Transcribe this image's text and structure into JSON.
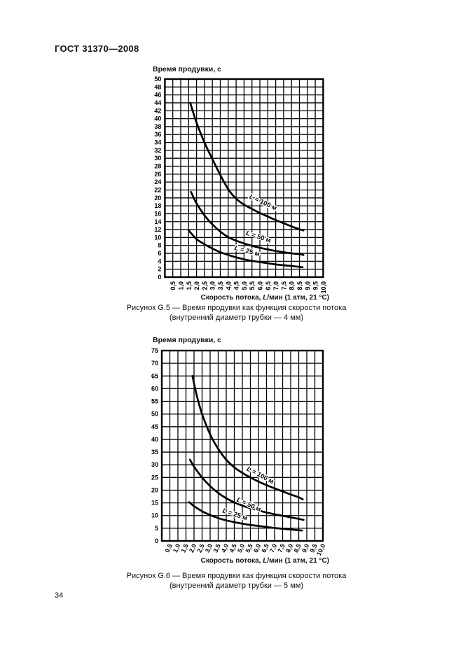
{
  "page": {
    "header": "ГОСТ 31370—2008",
    "page_number": "34"
  },
  "axis_label": {
    "prefix": "Скорость потока, ",
    "italic": "L",
    "suffix": "/мин (1 атм, 21 °C)"
  },
  "chart_data": [
    {
      "type": "line",
      "title": "",
      "ylabel": "Время продувки, с",
      "xlabel": "Скорость потока, L/мин (1 атм, 21 °C)",
      "xlim": [
        0,
        10
      ],
      "ylim": [
        0,
        50
      ],
      "grid": true,
      "legend_position": "labels-on-curves",
      "x_tick_rotation": -90,
      "x_ticks": [
        "0,5",
        "1,0",
        "1,5",
        "2,0",
        "2,5",
        "3,0",
        "3,5",
        "4,0",
        "4,5",
        "5,0",
        "5,5",
        "6,0",
        "6,5",
        "7,0",
        "7,5",
        "8,0",
        "8,5",
        "9,0",
        "9,5",
        "10,0"
      ],
      "y_ticks": [
        "0",
        "2",
        "4",
        "6",
        "8",
        "10",
        "12",
        "14",
        "16",
        "18",
        "20",
        "22",
        "24",
        "26",
        "28",
        "30",
        "32",
        "34",
        "36",
        "38",
        "40",
        "42",
        "44",
        "46",
        "48",
        "50"
      ],
      "series": [
        {
          "name": "L = 100 м",
          "label_x": 6.15,
          "label_y": 18.4,
          "label_angle": 25,
          "points": [
            [
              1.6,
              44
            ],
            [
              2,
              39
            ],
            [
              2.5,
              34
            ],
            [
              3,
              29.8
            ],
            [
              3.5,
              25.8
            ],
            [
              4,
              22.2
            ],
            [
              4.5,
              19.8
            ],
            [
              5,
              18.3
            ],
            [
              5.5,
              17.2
            ],
            [
              6,
              16.2
            ],
            [
              6.5,
              15.3
            ],
            [
              7,
              14.4
            ],
            [
              7.5,
              13.6
            ],
            [
              8,
              12.8
            ],
            [
              8.5,
              12.1
            ],
            [
              8.75,
              11.8
            ]
          ]
        },
        {
          "name": "L = 50 м",
          "label_x": 5.87,
          "label_y": 9.7,
          "label_angle": 18,
          "points": [
            [
              1.65,
              21.5
            ],
            [
              2,
              18.6
            ],
            [
              2.5,
              15.6
            ],
            [
              3,
              13.3
            ],
            [
              3.5,
              11.5
            ],
            [
              4,
              10.1
            ],
            [
              4.5,
              9.2
            ],
            [
              5,
              8.5
            ],
            [
              5.5,
              7.9
            ],
            [
              6,
              7.4
            ],
            [
              6.5,
              7.0
            ],
            [
              7,
              6.6
            ],
            [
              7.5,
              6.3
            ],
            [
              8,
              6.0
            ],
            [
              8.5,
              5.8
            ],
            [
              8.75,
              5.6
            ]
          ]
        },
        {
          "name": "L = 25 м",
          "label_x": 5.16,
          "label_y": 6.1,
          "label_angle": 15,
          "points": [
            [
              1.5,
              11.8
            ],
            [
              2,
              9.6
            ],
            [
              2.5,
              8.3
            ],
            [
              3,
              7.2
            ],
            [
              3.5,
              6.3
            ],
            [
              4,
              5.6
            ],
            [
              4.5,
              5.0
            ],
            [
              5,
              4.5
            ],
            [
              5.5,
              4.1
            ],
            [
              6,
              3.8
            ],
            [
              6.5,
              3.5
            ],
            [
              7,
              3.2
            ],
            [
              7.5,
              3.0
            ],
            [
              8,
              2.8
            ],
            [
              8.5,
              2.6
            ],
            [
              8.7,
              2.5
            ]
          ]
        }
      ],
      "caption_line1": "Рисунок G.5 — Время продувки как функция скорости потока",
      "caption_line2": "(внутренний диаметр трубки — 4 мм)"
    },
    {
      "type": "line",
      "title": "",
      "ylabel": "Время продувки, с",
      "xlabel": "Скорость потока, L/мин (1 атм, 21 °C)",
      "xlim": [
        0,
        10
      ],
      "ylim": [
        0,
        75
      ],
      "grid": true,
      "legend_position": "labels-on-curves",
      "x_tick_rotation": -65,
      "x_ticks": [
        "0,5",
        "1,0",
        "1,5",
        "2,0",
        "2,5",
        "3,0",
        "3,5",
        "4,0",
        "4,5",
        "5,0",
        "5,5",
        "6,0",
        "6,5",
        "7,0",
        "7,5",
        "8,0",
        "8,5",
        "9,0",
        "9,5",
        "10,0"
      ],
      "y_ticks": [
        "0",
        "5",
        "10",
        "15",
        "20",
        "25",
        "30",
        "35",
        "40",
        "45",
        "50",
        "55",
        "60",
        "65",
        "70",
        "75"
      ],
      "series": [
        {
          "name": "L = 100 м",
          "label_x": 6.05,
          "label_y": 25.2,
          "label_angle": 28,
          "points": [
            [
              1.9,
              65
            ],
            [
              2.2,
              56.5
            ],
            [
              2.5,
              50
            ],
            [
              3,
              42
            ],
            [
              3.5,
              36.3
            ],
            [
              4,
              32
            ],
            [
              4.5,
              29
            ],
            [
              5,
              26.8
            ],
            [
              5.5,
              25
            ],
            [
              6,
              23.4
            ],
            [
              6.5,
              22
            ],
            [
              7,
              20.7
            ],
            [
              7.5,
              19.5
            ],
            [
              8,
              18.3
            ],
            [
              8.5,
              17.2
            ],
            [
              8.75,
              16.4
            ]
          ]
        },
        {
          "name": "L = 50 м",
          "label_x": 5.35,
          "label_y": 13.6,
          "label_angle": 24,
          "points": [
            [
              1.75,
              32
            ],
            [
              2,
              29.3
            ],
            [
              2.5,
              25
            ],
            [
              3,
              21.6
            ],
            [
              3.5,
              18.9
            ],
            [
              4,
              16.8
            ],
            [
              4.5,
              15.2
            ],
            [
              5,
              13.9
            ],
            [
              5.5,
              12.9
            ],
            [
              6,
              12.0
            ],
            [
              6.5,
              11.2
            ],
            [
              7,
              10.5
            ],
            [
              7.5,
              9.9
            ],
            [
              8,
              9.3
            ],
            [
              8.5,
              8.7
            ],
            [
              8.8,
              8.3
            ]
          ]
        },
        {
          "name": "L = 25 м",
          "label_x": 4.5,
          "label_y": 9.7,
          "label_angle": 18,
          "points": [
            [
              1.7,
              15.3
            ],
            [
              2,
              13.7
            ],
            [
              2.5,
              11.7
            ],
            [
              3,
              10.2
            ],
            [
              3.5,
              9.0
            ],
            [
              4,
              8.1
            ],
            [
              4.5,
              7.4
            ],
            [
              5,
              6.8
            ],
            [
              5.5,
              6.3
            ],
            [
              6,
              5.9
            ],
            [
              6.5,
              5.5
            ],
            [
              7,
              5.1
            ],
            [
              7.5,
              4.8
            ],
            [
              8,
              4.5
            ],
            [
              8.5,
              4.2
            ],
            [
              8.7,
              4.1
            ]
          ]
        }
      ],
      "caption_line1": "Рисунок G.6 — Время продувки как функция скорости потока",
      "caption_line2": "(внутренний диаметр трубки — 5 мм)"
    }
  ]
}
